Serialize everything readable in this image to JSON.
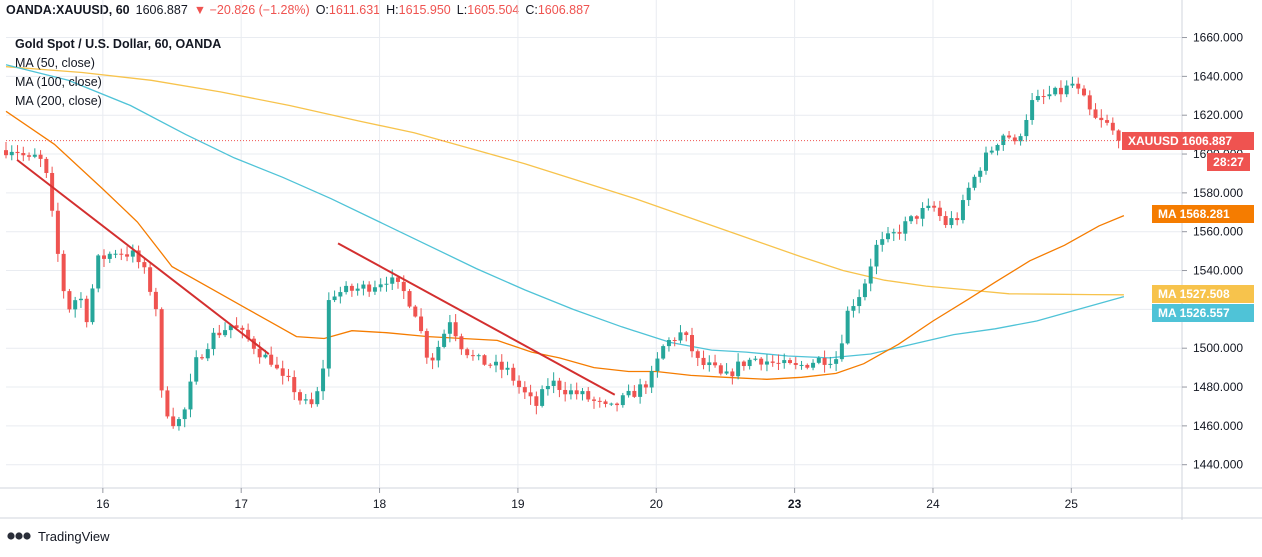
{
  "header": {
    "symbol": "OANDA:XAUUSD, 60",
    "last": "1606.887",
    "change": "▼ −20.826 (−1.28%)",
    "open_label": "O:",
    "open": "1611.631",
    "high_label": "H:",
    "high": "1615.950",
    "low_label": "L:",
    "low": "1605.504",
    "close_label": "C:",
    "close": "1606.887"
  },
  "legend": {
    "title": "Gold Spot / U.S. Dollar, 60, OANDA",
    "ma50": "MA (50, close)",
    "ma100": "MA (100, close)",
    "ma200": "MA (200, close)"
  },
  "price_labels": {
    "symbol_tag": "XAUUSD",
    "symbol_price": "1606.887",
    "countdown": "28:27",
    "ma_tag": "MA",
    "ma50_value": "1568.281",
    "ma100_value": "1526.557",
    "ma200_value": "1527.508"
  },
  "branding": {
    "name": "TradingView"
  },
  "colors": {
    "up": "#26a69a",
    "down": "#ef5350",
    "ma50": "#f57c00",
    "ma100": "#4fc3d7",
    "ma200": "#f7c34c",
    "trendline": "#d32f2f",
    "grid": "#e9ecf1"
  },
  "chart_data": {
    "type": "candlestick",
    "title": "Gold Spot / U.S. Dollar, 60, OANDA",
    "ylim": [
      1428,
      1668
    ],
    "y_ticks": [
      "1440.000",
      "1460.000",
      "1480.000",
      "1500.000",
      "1520.000",
      "1540.000",
      "1560.000",
      "1580.000",
      "1600.000",
      "1620.000",
      "1640.000",
      "1660.000"
    ],
    "x_ticks": [
      "16",
      "17",
      "18",
      "19",
      "20",
      "23",
      "24",
      "25"
    ],
    "x_tick_positions": [
      0.15,
      1.15,
      2.15,
      3.15,
      4.15,
      5.15,
      6.15,
      7.15
    ],
    "x_range": [
      -0.55,
      7.95
    ],
    "grid": true,
    "legend_position": "top-left",
    "current_price": 1606.887,
    "anchors": [
      [
        -0.55,
        1602
      ],
      [
        -0.45,
        1603
      ],
      [
        -0.33,
        1596
      ],
      [
        -0.28,
        1600
      ],
      [
        -0.22,
        1590
      ],
      [
        -0.1,
        1532
      ],
      [
        -0.05,
        1521
      ],
      [
        0.02,
        1528
      ],
      [
        0.08,
        1515
      ],
      [
        0.15,
        1545
      ],
      [
        0.28,
        1550
      ],
      [
        0.42,
        1548
      ],
      [
        0.5,
        1538
      ],
      [
        0.58,
        1520
      ],
      [
        0.62,
        1472
      ],
      [
        0.72,
        1460
      ],
      [
        0.8,
        1470
      ],
      [
        0.85,
        1491
      ],
      [
        0.98,
        1506
      ],
      [
        1.12,
        1512
      ],
      [
        1.25,
        1504
      ],
      [
        1.35,
        1496
      ],
      [
        1.43,
        1493
      ],
      [
        1.47,
        1484
      ],
      [
        1.55,
        1482
      ],
      [
        1.63,
        1472
      ],
      [
        1.72,
        1470
      ],
      [
        1.78,
        1488
      ],
      [
        1.83,
        1528
      ],
      [
        2.0,
        1530
      ],
      [
        2.12,
        1532
      ],
      [
        2.25,
        1536
      ],
      [
        2.38,
        1528
      ],
      [
        2.47,
        1516
      ],
      [
        2.52,
        1498
      ],
      [
        2.58,
        1495
      ],
      [
        2.7,
        1515
      ],
      [
        2.78,
        1502
      ],
      [
        2.88,
        1494
      ],
      [
        2.98,
        1492
      ],
      [
        3.12,
        1488
      ],
      [
        3.22,
        1478
      ],
      [
        3.32,
        1470
      ],
      [
        3.42,
        1483
      ],
      [
        3.55,
        1478
      ],
      [
        3.65,
        1476
      ],
      [
        3.75,
        1472
      ],
      [
        3.85,
        1468
      ],
      [
        3.92,
        1472
      ],
      [
        4.05,
        1478
      ],
      [
        4.15,
        1484
      ],
      [
        4.25,
        1502
      ],
      [
        4.38,
        1508
      ],
      [
        4.45,
        1499
      ],
      [
        4.5,
        1492
      ],
      [
        4.6,
        1490
      ],
      [
        4.68,
        1484
      ],
      [
        4.8,
        1492
      ],
      [
        4.92,
        1495
      ],
      [
        5.05,
        1492
      ],
      [
        5.2,
        1490
      ],
      [
        5.35,
        1494
      ],
      [
        5.5,
        1495
      ],
      [
        5.58,
        1520
      ],
      [
        5.68,
        1530
      ],
      [
        5.78,
        1552
      ],
      [
        5.9,
        1558
      ],
      [
        6.0,
        1564
      ],
      [
        6.1,
        1570
      ],
      [
        6.2,
        1572
      ],
      [
        6.28,
        1564
      ],
      [
        6.38,
        1568
      ],
      [
        6.45,
        1582
      ],
      [
        6.55,
        1596
      ],
      [
        6.65,
        1606
      ],
      [
        6.72,
        1612
      ],
      [
        6.78,
        1604
      ],
      [
        6.84,
        1614
      ],
      [
        6.9,
        1626
      ],
      [
        7.02,
        1630
      ],
      [
        7.12,
        1632
      ],
      [
        7.2,
        1636
      ],
      [
        7.28,
        1628
      ],
      [
        7.35,
        1618
      ],
      [
        7.45,
        1615
      ],
      [
        7.53,
        1608
      ]
    ],
    "ma50_points": [
      [
        -0.55,
        1622
      ],
      [
        -0.2,
        1605
      ],
      [
        0.15,
        1582
      ],
      [
        0.4,
        1565
      ],
      [
        0.65,
        1542
      ],
      [
        0.95,
        1530
      ],
      [
        1.2,
        1520
      ],
      [
        1.4,
        1512
      ],
      [
        1.55,
        1506
      ],
      [
        1.75,
        1505
      ],
      [
        1.95,
        1509
      ],
      [
        2.2,
        1508
      ],
      [
        2.5,
        1506
      ],
      [
        2.75,
        1505
      ],
      [
        3.0,
        1504
      ],
      [
        3.25,
        1498
      ],
      [
        3.45,
        1495
      ],
      [
        3.7,
        1490
      ],
      [
        3.95,
        1488
      ],
      [
        4.15,
        1488
      ],
      [
        4.4,
        1486
      ],
      [
        4.65,
        1485
      ],
      [
        4.95,
        1484
      ],
      [
        5.2,
        1485
      ],
      [
        5.45,
        1487
      ],
      [
        5.65,
        1492
      ],
      [
        5.9,
        1502
      ],
      [
        6.15,
        1514
      ],
      [
        6.4,
        1525
      ],
      [
        6.6,
        1534
      ],
      [
        6.85,
        1545
      ],
      [
        7.1,
        1553
      ],
      [
        7.35,
        1563
      ],
      [
        7.53,
        1568.3
      ]
    ],
    "ma100_points": [
      [
        -0.55,
        1646
      ],
      [
        -0.1,
        1638
      ],
      [
        0.35,
        1625
      ],
      [
        0.75,
        1610
      ],
      [
        1.1,
        1598
      ],
      [
        1.45,
        1588
      ],
      [
        1.8,
        1577
      ],
      [
        2.15,
        1565
      ],
      [
        2.5,
        1553
      ],
      [
        2.85,
        1541
      ],
      [
        3.2,
        1530
      ],
      [
        3.55,
        1520
      ],
      [
        3.9,
        1511
      ],
      [
        4.25,
        1503
      ],
      [
        4.55,
        1499
      ],
      [
        4.8,
        1498
      ],
      [
        5.1,
        1496
      ],
      [
        5.4,
        1495
      ],
      [
        5.7,
        1497
      ],
      [
        6.0,
        1502
      ],
      [
        6.3,
        1507
      ],
      [
        6.6,
        1510
      ],
      [
        6.9,
        1514
      ],
      [
        7.2,
        1520
      ],
      [
        7.53,
        1526.6
      ]
    ],
    "ma200_points": [
      [
        -0.55,
        1645
      ],
      [
        0.0,
        1642
      ],
      [
        0.5,
        1638
      ],
      [
        1.0,
        1632
      ],
      [
        1.5,
        1625
      ],
      [
        2.0,
        1617
      ],
      [
        2.4,
        1611
      ],
      [
        2.8,
        1603
      ],
      [
        3.2,
        1595
      ],
      [
        3.6,
        1586
      ],
      [
        4.0,
        1577
      ],
      [
        4.4,
        1567
      ],
      [
        4.8,
        1557
      ],
      [
        5.2,
        1547
      ],
      [
        5.5,
        1540
      ],
      [
        5.8,
        1535
      ],
      [
        6.1,
        1532
      ],
      [
        6.4,
        1530
      ],
      [
        6.7,
        1528
      ],
      [
        7.0,
        1527.8
      ],
      [
        7.3,
        1527.6
      ],
      [
        7.53,
        1527.5
      ]
    ],
    "trendlines": [
      {
        "from": [
          -0.47,
          1597
        ],
        "to": [
          1.35,
          1497
        ]
      },
      {
        "from": [
          1.85,
          1554
        ],
        "to": [
          3.85,
          1476
        ]
      }
    ]
  }
}
